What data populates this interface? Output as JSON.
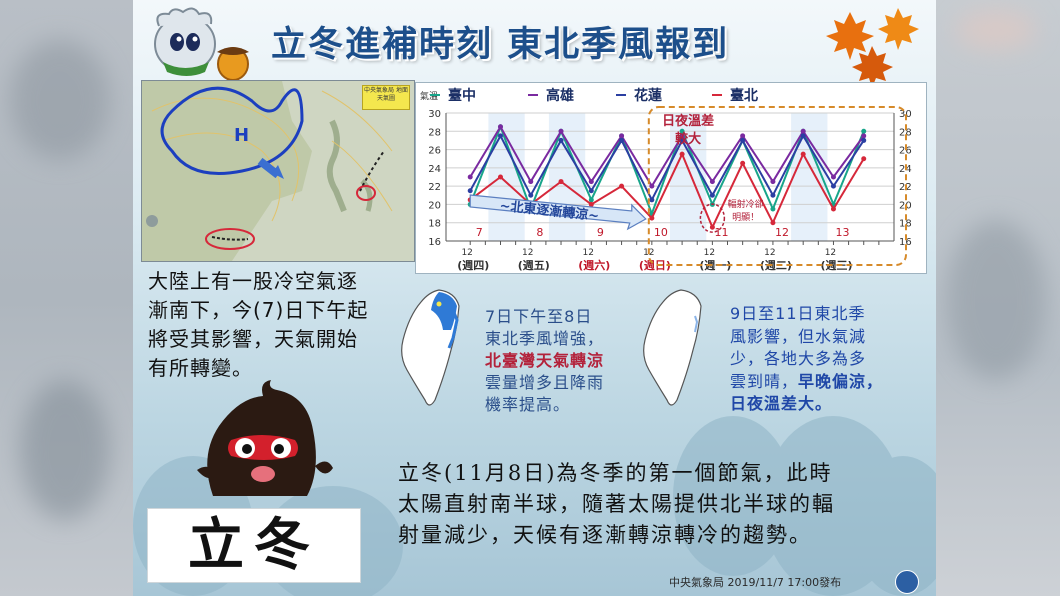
{
  "title": "立冬進補時刻  東北季風報到",
  "weather_map": {
    "stamp": "中央氣象局 地面天氣圖",
    "high_label": "H"
  },
  "chart_data": {
    "type": "line",
    "title": "",
    "ylabel": "氣溫",
    "ylim": [
      16,
      30
    ],
    "y_ticks": [
      16,
      18,
      20,
      22,
      24,
      26,
      28,
      30
    ],
    "x": [
      7.0,
      7.5,
      8.0,
      8.5,
      9.0,
      9.5,
      10.0,
      10.5,
      11.0,
      11.5,
      12.0,
      12.5,
      13.0,
      13.5
    ],
    "day_labels": [
      "7",
      "8",
      "9",
      "10",
      "11",
      "12",
      "13"
    ],
    "weekday_labels": [
      "(週四)",
      "(週五)",
      "(週六)",
      "(週日)",
      "(週一)",
      "(週二)",
      "(週三)"
    ],
    "weekday_colors": [
      "#333333",
      "#333333",
      "#c0182a",
      "#c0182a",
      "#333333",
      "#333333",
      "#333333"
    ],
    "series": [
      {
        "name": "臺中",
        "color": "#18a58a",
        "values": [
          20,
          28.5,
          19.5,
          28,
          20.5,
          27.5,
          19,
          28,
          20,
          27,
          19.5,
          28,
          20,
          28
        ]
      },
      {
        "name": "高雄",
        "color": "#7a2aa0",
        "values": [
          23,
          28.5,
          22.5,
          28,
          22.5,
          27.5,
          22,
          27.5,
          22.5,
          27.5,
          22.5,
          28,
          23,
          27.5
        ]
      },
      {
        "name": "花蓮",
        "color": "#2b3fa2",
        "values": [
          21.5,
          27.5,
          21,
          27,
          21.5,
          27,
          20.5,
          27,
          21,
          27,
          21,
          27.5,
          22,
          27
        ]
      },
      {
        "name": "臺北",
        "color": "#d6283a",
        "values": [
          20.5,
          23,
          20,
          22.5,
          20,
          22,
          18.5,
          25.5,
          17.5,
          24.5,
          18,
          25.5,
          19.5,
          25
        ]
      }
    ],
    "annotations": {
      "trend": "~北東逐漸轉涼~",
      "temp_diff": [
        "日夜溫差",
        "較大"
      ],
      "radiation": [
        "輻射冷卻",
        "明顯！"
      ]
    }
  },
  "left_desc": "大陸上有一股冷空氣逐漸南下，今(7)日下午起將受其影響，天氣開始有所轉變。",
  "mid_desc": {
    "line1": "7日下午至8日",
    "line2": "東北季風增強，",
    "line3_bold": "北臺灣天氣轉涼",
    "line4": "雲量增多且降雨",
    "line5": "機率提高。"
  },
  "right_desc": {
    "line1": "9日至11日東北季",
    "line2": "風影響，但水氣減",
    "line3": "少，各地大多為多",
    "line4_a": "雲到晴，",
    "line4_b": "早晚偏涼，",
    "line5_bold": "日夜溫差大。"
  },
  "lidong_note": [
    "立冬(11月8日)為冬季的第一個節氣，此時",
    "太陽直射南半球，隨著太陽提供北半球的輻",
    "射量減少，天候有逐漸轉涼轉冷的趨勢。"
  ],
  "lidong_card": "立冬",
  "footer": "中央氣象局 2019/11/7  17:00發布",
  "colors": {
    "title": "#1d4f8b",
    "accent_red": "#b3223b",
    "accent_blue": "#1f47a7"
  }
}
